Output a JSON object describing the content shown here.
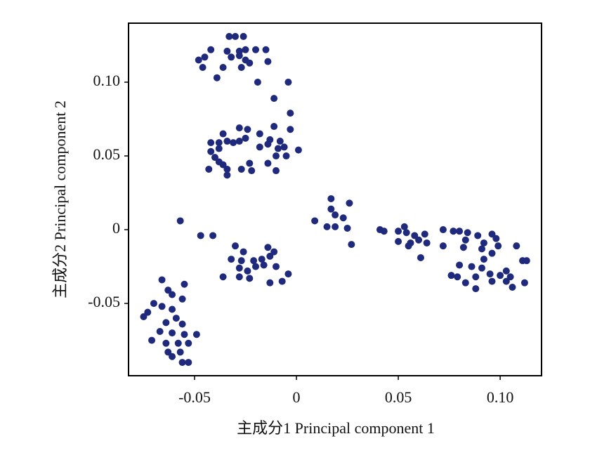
{
  "chart_data": {
    "type": "scatter",
    "x_label": "主成分1 Principal component 1",
    "y_label": "主成分2 Principal component 2",
    "color": "#1f2a7c",
    "xlim": [
      -0.0824,
      0.1203
    ],
    "ylim": [
      -0.099,
      0.14
    ],
    "xticks": [
      -0.05,
      0,
      0.05,
      {
        "value": 0.1,
        "label": "0.10"
      }
    ],
    "yticks": [
      {
        "value": 0.1,
        "label": "0.10"
      },
      0.05,
      0,
      -0.05
    ],
    "x": [
      -0.033,
      -0.03,
      -0.026,
      -0.042,
      -0.034,
      -0.028,
      -0.025,
      -0.02,
      -0.015,
      -0.048,
      -0.045,
      -0.032,
      -0.028,
      -0.025,
      -0.023,
      -0.027,
      -0.014,
      -0.046,
      -0.036,
      -0.039,
      -0.019,
      -0.004,
      -0.011,
      -0.003,
      -0.011,
      -0.003,
      -0.028,
      -0.024,
      -0.036,
      -0.018,
      -0.042,
      -0.038,
      -0.034,
      -0.031,
      -0.028,
      -0.025,
      -0.013,
      -0.008,
      -0.006,
      -0.009,
      0.001,
      -0.042,
      -0.038,
      -0.04,
      -0.038,
      -0.036,
      -0.043,
      -0.034,
      -0.034,
      -0.027,
      -0.023,
      -0.022,
      -0.014,
      -0.01,
      -0.005,
      -0.01,
      -0.018,
      -0.014,
      -0.057,
      -0.047,
      -0.041,
      -0.026,
      -0.03,
      -0.014,
      -0.011,
      -0.032,
      -0.027,
      -0.021,
      -0.017,
      -0.013,
      -0.028,
      -0.024,
      -0.02,
      -0.016,
      -0.036,
      -0.028,
      -0.023,
      -0.013,
      -0.007,
      -0.004,
      -0.01,
      -0.066,
      -0.055,
      -0.063,
      -0.061,
      -0.056,
      -0.07,
      -0.066,
      -0.061,
      -0.073,
      -0.059,
      -0.075,
      -0.064,
      -0.056,
      -0.067,
      -0.061,
      -0.055,
      -0.049,
      -0.071,
      -0.064,
      -0.058,
      -0.053,
      -0.063,
      -0.057,
      -0.061,
      -0.056,
      -0.053,
      0.017,
      0.026,
      0.017,
      0.019,
      0.009,
      0.023,
      0.015,
      0.019,
      0.025,
      0.027,
      0.041,
      0.043,
      0.053,
      0.05,
      0.054,
      0.058,
      0.063,
      0.05,
      0.056,
      0.06,
      0.064,
      0.055,
      0.061,
      0.072,
      0.077,
      0.08,
      0.084,
      0.089,
      0.096,
      0.098,
      0.083,
      0.092,
      0.099,
      0.072,
      0.082,
      0.091,
      0.096,
      0.108,
      0.092,
      0.08,
      0.086,
      0.091,
      0.103,
      0.111,
      0.113,
      0.076,
      0.079,
      0.095,
      0.1,
      0.105,
      0.083,
      0.096,
      0.103,
      0.106,
      0.112,
      0.088,
      0.088
    ],
    "values": [
      0.131,
      0.131,
      0.131,
      0.122,
      0.121,
      0.121,
      0.122,
      0.122,
      0.122,
      0.115,
      0.117,
      0.117,
      0.118,
      0.115,
      0.113,
      0.11,
      0.114,
      0.11,
      0.11,
      0.103,
      0.1,
      0.1,
      0.089,
      0.079,
      0.07,
      0.068,
      0.069,
      0.068,
      0.065,
      0.065,
      0.059,
      0.059,
      0.06,
      0.059,
      0.06,
      0.062,
      0.061,
      0.06,
      0.056,
      0.055,
      0.054,
      0.053,
      0.055,
      0.049,
      0.046,
      0.044,
      0.041,
      0.041,
      0.037,
      0.041,
      0.045,
      0.04,
      0.045,
      0.05,
      0.05,
      0.04,
      0.056,
      0.058,
      0.006,
      -0.004,
      -0.004,
      -0.015,
      -0.011,
      -0.012,
      -0.015,
      -0.02,
      -0.021,
      -0.021,
      -0.02,
      -0.018,
      -0.026,
      -0.028,
      -0.025,
      -0.024,
      -0.032,
      -0.032,
      -0.033,
      -0.036,
      -0.035,
      -0.03,
      -0.025,
      -0.034,
      -0.037,
      -0.041,
      -0.044,
      -0.047,
      -0.05,
      -0.052,
      -0.054,
      -0.056,
      -0.06,
      -0.059,
      -0.063,
      -0.064,
      -0.069,
      -0.07,
      -0.071,
      -0.071,
      -0.075,
      -0.077,
      -0.077,
      -0.077,
      -0.083,
      -0.083,
      -0.086,
      -0.09,
      -0.09,
      0.021,
      0.018,
      0.014,
      0.01,
      0.006,
      0.008,
      0.002,
      0.002,
      0.001,
      -0.01,
      0.0,
      -0.001,
      0.002,
      -0.001,
      -0.002,
      -0.004,
      -0.003,
      -0.008,
      -0.009,
      -0.007,
      -0.009,
      -0.011,
      -0.019,
      0.0,
      -0.001,
      -0.001,
      -0.002,
      -0.004,
      -0.003,
      -0.006,
      -0.007,
      -0.009,
      -0.011,
      -0.011,
      -0.012,
      -0.013,
      -0.016,
      -0.011,
      -0.02,
      -0.024,
      -0.025,
      -0.026,
      -0.028,
      -0.021,
      -0.021,
      -0.031,
      -0.032,
      -0.03,
      -0.031,
      -0.032,
      -0.036,
      -0.035,
      -0.035,
      -0.039,
      -0.036,
      -0.04,
      -0.032
    ]
  }
}
